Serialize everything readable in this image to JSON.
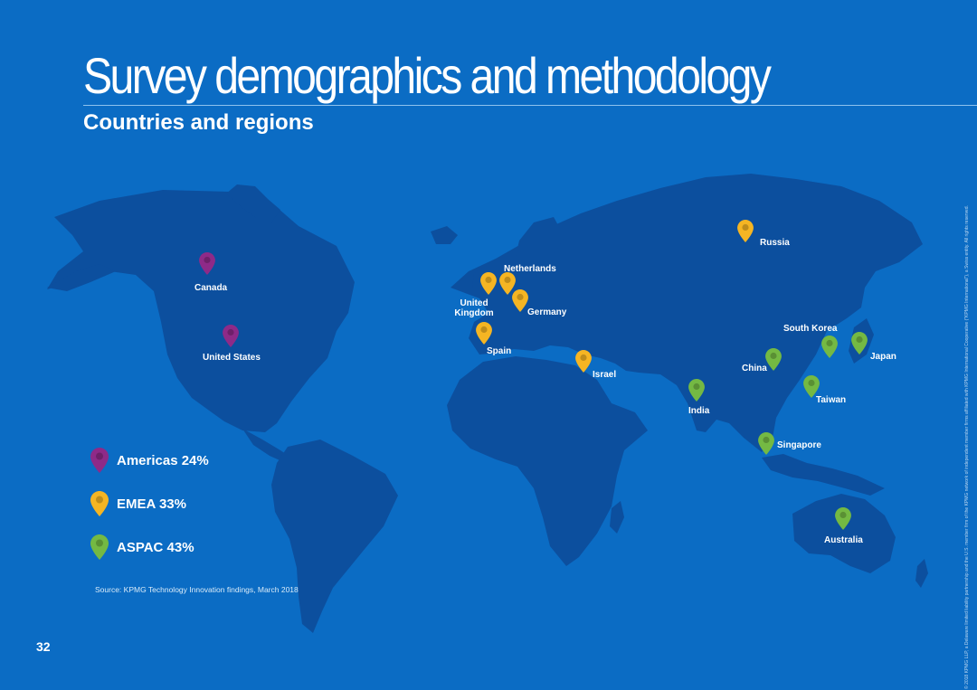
{
  "page": {
    "title": "Survey demographics and methodology",
    "subtitle": "Countries and regions",
    "page_number": "32",
    "source": "Source: KPMG Technology Innovation findings, March 2018",
    "copyright": "© 2018 KPMG LLP, a Delaware limited liability partnership and the U.S. member firm of the KPMG network of independent member firms affiliated with KPMG International Cooperative (\"KPMG International\"), a Swiss entity. All rights reserved."
  },
  "colors": {
    "background": "#0b6cc4",
    "land": "#0c4f9e",
    "americas": "#8e2a88",
    "emea": "#f5b523",
    "aspac": "#74b943"
  },
  "legend": [
    {
      "label": "Americas 24%",
      "region": "americas",
      "icon": "map-pin-icon"
    },
    {
      "label": "EMEA 33%",
      "region": "emea",
      "icon": "map-pin-icon"
    },
    {
      "label": "ASPAC 43%",
      "region": "aspac",
      "icon": "map-pin-icon"
    }
  ],
  "markers": [
    {
      "label": "Canada",
      "region": "americas"
    },
    {
      "label": "United States",
      "region": "americas"
    },
    {
      "label": "United Kingdom",
      "region": "emea"
    },
    {
      "label": "Netherlands",
      "region": "emea"
    },
    {
      "label": "Germany",
      "region": "emea"
    },
    {
      "label": "Spain",
      "region": "emea"
    },
    {
      "label": "Israel",
      "region": "emea"
    },
    {
      "label": "Russia",
      "region": "emea"
    },
    {
      "label": "India",
      "region": "aspac"
    },
    {
      "label": "China",
      "region": "aspac"
    },
    {
      "label": "South Korea",
      "region": "aspac"
    },
    {
      "label": "Japan",
      "region": "aspac"
    },
    {
      "label": "Taiwan",
      "region": "aspac"
    },
    {
      "label": "Singapore",
      "region": "aspac"
    },
    {
      "label": "Australia",
      "region": "aspac"
    }
  ]
}
